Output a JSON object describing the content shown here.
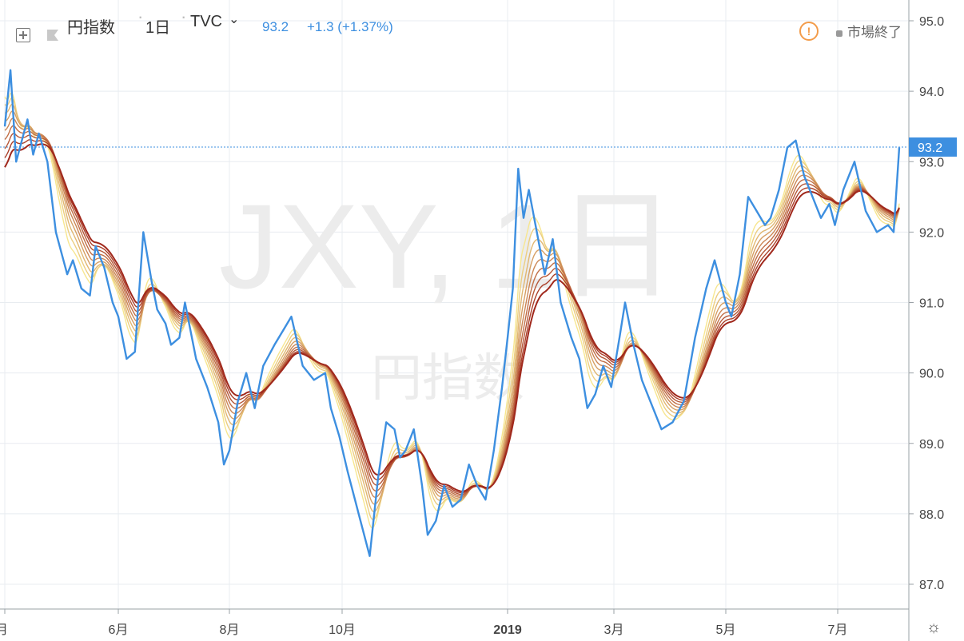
{
  "header": {
    "symbol_name": "円指数",
    "interval": "1日",
    "exchange": "TVC",
    "last_price": "93.2",
    "change": "+1.3 (+1.37%)",
    "market_status": "市場終了"
  },
  "watermark": {
    "ticker": "JXY, 1日",
    "name": "円指数"
  },
  "last_price_label": "93.2",
  "colors": {
    "price_line": "#3d8fe0",
    "last_price_badge": "#3d8fe0",
    "ribbon_fast": "#f7e68f",
    "ribbon_slow": "#a0281c",
    "grid": "#e8ecf0",
    "warning": "#f39c4a"
  },
  "icons": {
    "add": "plus-square-icon",
    "flag": "flag-icon",
    "warning": "warning-icon",
    "settings": "gear-icon",
    "dropdown": "chevron-down-icon"
  },
  "chart_data": {
    "type": "line",
    "title": "",
    "xlabel": "",
    "ylabel": "",
    "ylim": [
      86.8,
      95.3
    ],
    "yticks": [
      "95.0",
      "94.0",
      "93.0",
      "92.0",
      "91.0",
      "90.0",
      "89.0",
      "88.0",
      "87.0"
    ],
    "x_tick_labels": [
      "月",
      "6月",
      "8月",
      "10月",
      "2019",
      "3月",
      "5月",
      "7月"
    ],
    "x_tick_months": [
      3,
      5,
      7,
      9,
      12,
      14,
      16,
      18
    ],
    "grid": true,
    "legend": "none",
    "price_series": {
      "name": "",
      "x_months": [
        3.0,
        3.1,
        3.2,
        3.4,
        3.5,
        3.6,
        3.75,
        3.9,
        4.1,
        4.2,
        4.35,
        4.5,
        4.6,
        4.75,
        4.9,
        5.0,
        5.15,
        5.3,
        5.45,
        5.6,
        5.7,
        5.85,
        5.95,
        6.1,
        6.2,
        6.4,
        6.6,
        6.8,
        6.9,
        7.0,
        7.15,
        7.3,
        7.45,
        7.6,
        7.8,
        7.95,
        8.1,
        8.3,
        8.5,
        8.7,
        8.8,
        8.95,
        9.1,
        9.3,
        9.5,
        9.65,
        9.8,
        9.95,
        10.05,
        10.15,
        10.3,
        10.45,
        10.55,
        10.7,
        10.85,
        11.0,
        11.15,
        11.3,
        11.45,
        11.6,
        11.75,
        11.9,
        12.0,
        12.1,
        12.2,
        12.3,
        12.4,
        12.55,
        12.7,
        12.85,
        13.0,
        13.2,
        13.35,
        13.5,
        13.65,
        13.8,
        13.95,
        14.1,
        14.2,
        14.35,
        14.5,
        14.65,
        14.85,
        15.05,
        15.25,
        15.45,
        15.65,
        15.8,
        16.0,
        16.1,
        16.25,
        16.4,
        16.55,
        16.7,
        16.8,
        16.95,
        17.1,
        17.25,
        17.4,
        17.55,
        17.7,
        17.85,
        17.95,
        18.1,
        18.3,
        18.5,
        18.7,
        18.9,
        19.0,
        19.1
      ],
      "values": [
        93.5,
        94.3,
        93.0,
        93.6,
        93.1,
        93.4,
        93.0,
        92.0,
        91.4,
        91.6,
        91.2,
        91.1,
        91.8,
        91.5,
        91.0,
        90.8,
        90.2,
        90.3,
        92.0,
        91.3,
        90.9,
        90.7,
        90.4,
        90.5,
        91.0,
        90.2,
        89.8,
        89.3,
        88.7,
        88.9,
        89.6,
        90.0,
        89.5,
        90.1,
        90.4,
        90.6,
        90.8,
        90.1,
        89.9,
        90.0,
        89.5,
        89.1,
        88.6,
        88.0,
        87.4,
        88.5,
        89.3,
        89.2,
        88.8,
        88.9,
        89.2,
        88.4,
        87.7,
        87.9,
        88.4,
        88.1,
        88.2,
        88.7,
        88.4,
        88.2,
        88.9,
        89.8,
        90.5,
        91.2,
        92.9,
        92.2,
        92.6,
        92.0,
        91.4,
        91.9,
        91.0,
        90.5,
        90.2,
        89.5,
        89.7,
        90.1,
        89.8,
        90.5,
        91.0,
        90.4,
        89.9,
        89.6,
        89.2,
        89.3,
        89.6,
        90.5,
        91.2,
        91.6,
        91.0,
        90.8,
        91.4,
        92.5,
        92.3,
        92.1,
        92.2,
        92.6,
        93.2,
        93.3,
        92.8,
        92.5,
        92.2,
        92.4,
        92.1,
        92.6,
        93.0,
        92.3,
        92.0,
        92.1,
        92.0,
        93.2
      ]
    },
    "ribbon": {
      "lines": 9,
      "periods": [
        10,
        13,
        16,
        19,
        22,
        25,
        28,
        31,
        34
      ],
      "note_color_from": "#f7e68f",
      "note_color_to": "#a0281c"
    }
  }
}
